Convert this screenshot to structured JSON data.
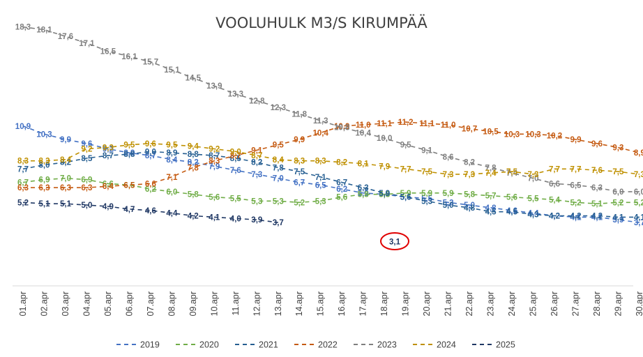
{
  "chart_data": {
    "type": "line",
    "title": "VOOLUHULK M3/S KIRUMPÄÄ",
    "xlabel": "",
    "ylabel": "",
    "categories": [
      "01.apr",
      "02.apr",
      "03.apr",
      "04.apr",
      "05.apr",
      "06.apr",
      "07.apr",
      "08.apr",
      "09.apr",
      "10.apr",
      "11.apr",
      "12.apr",
      "13.apr",
      "14.apr",
      "15.apr",
      "16.apr",
      "17.apr",
      "18.apr",
      "19.apr",
      "20.apr",
      "21.apr",
      "22.apr",
      "23.apr",
      "24.apr",
      "25.apr",
      "26.apr",
      "27.apr",
      "28.apr",
      "29.apr",
      "30.apr"
    ],
    "grid": false,
    "legend_position": "bottom",
    "series": [
      {
        "name": "2019",
        "color": "#4472C4",
        "values": [
          10.9,
          10.3,
          9.9,
          9.6,
          9.2,
          8.9,
          8.7,
          8.4,
          8.2,
          7.9,
          7.6,
          7.3,
          7.0,
          6.7,
          6.5,
          6.2,
          5.9,
          5.8,
          5.6,
          5.5,
          5.2,
          5.0,
          4.8,
          4.6,
          4.4,
          4.2,
          4.1,
          4.1,
          3.9,
          3.7
        ]
      },
      {
        "name": "2020",
        "color": "#70AD47",
        "values": [
          6.7,
          6.9,
          7.0,
          6.9,
          6.6,
          6.5,
          6.2,
          6.0,
          5.8,
          5.6,
          5.5,
          5.3,
          5.3,
          5.2,
          5.3,
          5.6,
          5.8,
          5.8,
          5.9,
          5.9,
          5.9,
          5.8,
          5.7,
          5.6,
          5.5,
          5.4,
          5.2,
          5.1,
          5.2,
          5.2
        ]
      },
      {
        "name": "2021",
        "color": "#255E91",
        "values": [
          7.7,
          8.0,
          8.2,
          8.5,
          8.7,
          8.8,
          9.0,
          8.9,
          8.8,
          8.7,
          8.5,
          8.2,
          7.8,
          7.5,
          7.1,
          6.7,
          6.3,
          5.9,
          5.6,
          5.3,
          5.0,
          4.8,
          4.5,
          4.5,
          4.3,
          4.2,
          4.2,
          4.2,
          4.1,
          4.1
        ]
      },
      {
        "name": "2022",
        "color": "#C55A11",
        "values": [
          6.3,
          6.3,
          6.3,
          6.3,
          6.4,
          6.5,
          6.6,
          7.1,
          7.8,
          8.3,
          8.7,
          9.1,
          9.5,
          9.9,
          10.4,
          10.9,
          11.0,
          11.1,
          11.2,
          11.1,
          11.0,
          10.7,
          10.5,
          10.3,
          10.3,
          10.2,
          9.9,
          9.6,
          9.3,
          8.9
        ]
      },
      {
        "name": "2023",
        "color": "#7F7F7F",
        "values": [
          18.3,
          18.1,
          17.6,
          17.1,
          16.5,
          16.1,
          15.7,
          15.1,
          14.5,
          13.9,
          13.3,
          12.8,
          12.3,
          11.8,
          11.3,
          10.8,
          10.4,
          10.0,
          9.5,
          9.1,
          8.6,
          8.2,
          7.8,
          7.4,
          7.0,
          6.6,
          6.5,
          6.3,
          6.0,
          6.0
        ]
      },
      {
        "name": "2024",
        "color": "#BF9000",
        "values": [
          8.3,
          8.3,
          8.4,
          9.2,
          9.3,
          9.5,
          9.6,
          9.5,
          9.4,
          9.2,
          9.0,
          8.7,
          8.4,
          8.3,
          8.3,
          8.2,
          8.1,
          7.9,
          7.7,
          7.5,
          7.3,
          7.3,
          7.4,
          7.5,
          7.3,
          7.7,
          7.7,
          7.6,
          7.5,
          7.3
        ]
      },
      {
        "name": "2025",
        "color": "#203864",
        "values": [
          5.2,
          5.1,
          5.1,
          5.0,
          4.9,
          4.7,
          4.6,
          4.4,
          4.2,
          4.1,
          4.0,
          3.9,
          3.7,
          null,
          null,
          null,
          null,
          null,
          null,
          null,
          null,
          null,
          null,
          null,
          null,
          null,
          null,
          null,
          null,
          null
        ]
      }
    ],
    "annotations": [
      {
        "text": "3,1",
        "style": "circled",
        "color": "#E00000"
      }
    ]
  }
}
